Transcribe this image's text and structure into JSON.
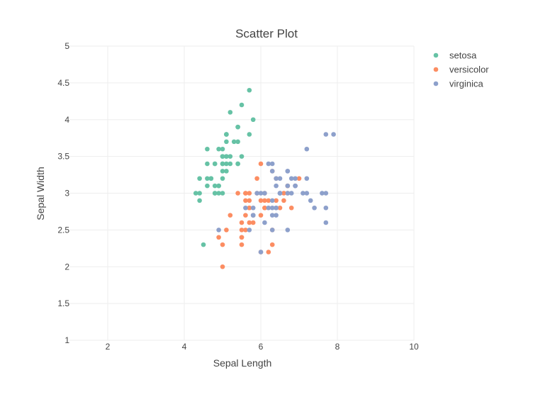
{
  "chart_data": {
    "type": "scatter",
    "title": "Scatter Plot",
    "xlabel": "Sepal Length",
    "ylabel": "Sepal Width",
    "xlim": [
      1,
      10
    ],
    "ylim": [
      1,
      5
    ],
    "x_ticks": [
      "2",
      "4",
      "6",
      "8",
      "10"
    ],
    "y_ticks": [
      "1",
      "1.5",
      "2",
      "2.5",
      "3",
      "3.5",
      "4",
      "4.5",
      "5"
    ],
    "grid": true,
    "legend_position": "top-right",
    "series": [
      {
        "name": "setosa",
        "color": "#66c2a5",
        "points": [
          [
            5.1,
            3.5
          ],
          [
            4.9,
            3.0
          ],
          [
            4.7,
            3.2
          ],
          [
            4.6,
            3.1
          ],
          [
            5.0,
            3.6
          ],
          [
            5.4,
            3.9
          ],
          [
            4.6,
            3.4
          ],
          [
            5.0,
            3.4
          ],
          [
            4.4,
            2.9
          ],
          [
            4.9,
            3.1
          ],
          [
            5.4,
            3.7
          ],
          [
            4.8,
            3.4
          ],
          [
            4.8,
            3.0
          ],
          [
            4.3,
            3.0
          ],
          [
            5.8,
            4.0
          ],
          [
            5.7,
            4.4
          ],
          [
            5.4,
            3.9
          ],
          [
            5.1,
            3.5
          ],
          [
            5.7,
            3.8
          ],
          [
            5.1,
            3.8
          ],
          [
            5.4,
            3.4
          ],
          [
            5.1,
            3.7
          ],
          [
            4.6,
            3.6
          ],
          [
            5.1,
            3.3
          ],
          [
            4.8,
            3.4
          ],
          [
            5.0,
            3.0
          ],
          [
            5.0,
            3.4
          ],
          [
            5.2,
            3.5
          ],
          [
            5.2,
            3.4
          ],
          [
            4.7,
            3.2
          ],
          [
            4.8,
            3.1
          ],
          [
            5.4,
            3.4
          ],
          [
            5.2,
            4.1
          ],
          [
            5.5,
            4.2
          ],
          [
            4.9,
            3.1
          ],
          [
            5.0,
            3.2
          ],
          [
            5.5,
            3.5
          ],
          [
            4.9,
            3.6
          ],
          [
            4.4,
            3.0
          ],
          [
            5.1,
            3.4
          ],
          [
            5.0,
            3.5
          ],
          [
            4.5,
            2.3
          ],
          [
            4.4,
            3.2
          ],
          [
            5.0,
            3.5
          ],
          [
            5.1,
            3.8
          ],
          [
            4.8,
            3.0
          ],
          [
            5.1,
            3.8
          ],
          [
            4.6,
            3.2
          ],
          [
            5.3,
            3.7
          ],
          [
            5.0,
            3.3
          ]
        ]
      },
      {
        "name": "versicolor",
        "color": "#fc8d62",
        "points": [
          [
            7.0,
            3.2
          ],
          [
            6.4,
            3.2
          ],
          [
            6.9,
            3.1
          ],
          [
            5.5,
            2.3
          ],
          [
            6.5,
            2.8
          ],
          [
            5.7,
            2.8
          ],
          [
            6.3,
            3.3
          ],
          [
            4.9,
            2.4
          ],
          [
            6.6,
            2.9
          ],
          [
            5.2,
            2.7
          ],
          [
            5.0,
            2.0
          ],
          [
            5.9,
            3.0
          ],
          [
            6.0,
            2.2
          ],
          [
            6.1,
            2.9
          ],
          [
            5.6,
            2.9
          ],
          [
            6.7,
            3.1
          ],
          [
            5.6,
            3.0
          ],
          [
            5.8,
            2.7
          ],
          [
            6.2,
            2.2
          ],
          [
            5.6,
            2.5
          ],
          [
            5.9,
            3.2
          ],
          [
            6.1,
            2.8
          ],
          [
            6.3,
            2.5
          ],
          [
            6.1,
            2.8
          ],
          [
            6.4,
            2.9
          ],
          [
            6.6,
            3.0
          ],
          [
            6.8,
            2.8
          ],
          [
            6.7,
            3.0
          ],
          [
            6.0,
            2.9
          ],
          [
            5.7,
            2.6
          ],
          [
            5.5,
            2.4
          ],
          [
            5.5,
            2.4
          ],
          [
            5.8,
            2.7
          ],
          [
            6.0,
            2.7
          ],
          [
            5.4,
            3.0
          ],
          [
            6.0,
            3.4
          ],
          [
            6.7,
            3.1
          ],
          [
            6.3,
            2.3
          ],
          [
            5.6,
            3.0
          ],
          [
            5.5,
            2.5
          ],
          [
            5.5,
            2.6
          ],
          [
            6.1,
            3.0
          ],
          [
            5.8,
            2.6
          ],
          [
            5.0,
            2.3
          ],
          [
            5.6,
            2.7
          ],
          [
            5.7,
            3.0
          ],
          [
            5.7,
            2.9
          ],
          [
            6.2,
            2.9
          ],
          [
            5.1,
            2.5
          ],
          [
            5.7,
            2.8
          ]
        ]
      },
      {
        "name": "virginica",
        "color": "#8da0cb",
        "points": [
          [
            6.3,
            3.3
          ],
          [
            5.8,
            2.7
          ],
          [
            7.1,
            3.0
          ],
          [
            6.3,
            2.9
          ],
          [
            6.5,
            3.0
          ],
          [
            7.6,
            3.0
          ],
          [
            4.9,
            2.5
          ],
          [
            7.3,
            2.9
          ],
          [
            6.7,
            2.5
          ],
          [
            7.2,
            3.6
          ],
          [
            6.5,
            3.2
          ],
          [
            6.4,
            2.7
          ],
          [
            6.8,
            3.0
          ],
          [
            5.7,
            2.5
          ],
          [
            5.8,
            2.8
          ],
          [
            6.4,
            3.2
          ],
          [
            6.5,
            3.0
          ],
          [
            7.7,
            3.8
          ],
          [
            7.7,
            2.6
          ],
          [
            6.0,
            2.2
          ],
          [
            6.9,
            3.2
          ],
          [
            5.6,
            2.8
          ],
          [
            7.7,
            2.8
          ],
          [
            6.3,
            2.7
          ],
          [
            6.7,
            3.3
          ],
          [
            7.2,
            3.2
          ],
          [
            6.2,
            2.8
          ],
          [
            6.1,
            3.0
          ],
          [
            6.4,
            2.8
          ],
          [
            7.2,
            3.0
          ],
          [
            7.4,
            2.8
          ],
          [
            7.9,
            3.8
          ],
          [
            6.4,
            2.8
          ],
          [
            6.3,
            2.8
          ],
          [
            6.1,
            2.6
          ],
          [
            7.7,
            3.0
          ],
          [
            6.3,
            3.4
          ],
          [
            6.4,
            3.1
          ],
          [
            6.0,
            3.0
          ],
          [
            6.9,
            3.1
          ],
          [
            6.7,
            3.1
          ],
          [
            6.9,
            3.1
          ],
          [
            5.8,
            2.7
          ],
          [
            6.8,
            3.2
          ],
          [
            6.7,
            3.3
          ],
          [
            6.7,
            3.0
          ],
          [
            6.3,
            2.5
          ],
          [
            6.5,
            3.0
          ],
          [
            6.2,
            3.4
          ],
          [
            5.9,
            3.0
          ]
        ]
      }
    ]
  }
}
